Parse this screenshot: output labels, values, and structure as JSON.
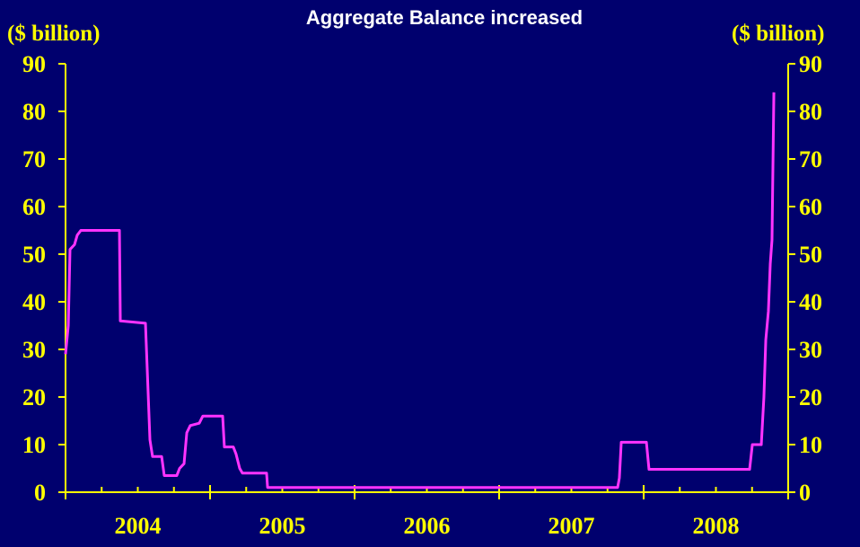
{
  "chart_data": {
    "type": "line",
    "title": "Aggregate Balance increased",
    "y_label": "($ billion)",
    "y2_label": "($ billion)",
    "categories": [
      "2004",
      "2005",
      "2006",
      "2007",
      "2008"
    ],
    "xlim": [
      2004,
      2009
    ],
    "xticks": [
      2004,
      2005,
      2006,
      2007,
      2008,
      2009
    ],
    "minor_tick_step": 0.25,
    "ylim": [
      0,
      90
    ],
    "yticks": [
      0,
      10,
      20,
      30,
      40,
      50,
      60,
      70,
      80,
      90
    ],
    "y2lim": [
      0,
      90
    ],
    "y2ticks": [
      0,
      10,
      20,
      30,
      40,
      50,
      60,
      70,
      80,
      90
    ],
    "background": "#00006e",
    "axis_color": "#ffff00",
    "series": [
      {
        "name": "Aggregate Balance",
        "color": "#ff33ff",
        "x": [
          2004.0,
          2004.019,
          2004.031,
          2004.062,
          2004.081,
          2004.106,
          2004.373,
          2004.379,
          2004.553,
          2004.565,
          2004.584,
          2004.602,
          2004.665,
          2004.683,
          2004.77,
          2004.789,
          2004.82,
          2004.839,
          2004.863,
          2004.925,
          2004.95,
          2005.087,
          2005.099,
          2005.161,
          2005.18,
          2005.205,
          2005.224,
          2005.391,
          2005.398,
          2007.82,
          2007.832,
          2007.845,
          2008.019,
          2008.037,
          2008.733,
          2008.752,
          2008.814,
          2008.832,
          2008.845,
          2008.863,
          2008.876,
          2008.888,
          2008.901
        ],
        "values": [
          29,
          35,
          51,
          52,
          54,
          55,
          55,
          36,
          35.5,
          26,
          11,
          7.5,
          7.5,
          3.5,
          3.5,
          5,
          6,
          12.5,
          14,
          14.5,
          16,
          16,
          9.5,
          9.5,
          8,
          5,
          4,
          4,
          1,
          1,
          3,
          10.5,
          10.5,
          4.8,
          4.8,
          10,
          10,
          20,
          32,
          38,
          48,
          53,
          84
        ]
      }
    ]
  }
}
